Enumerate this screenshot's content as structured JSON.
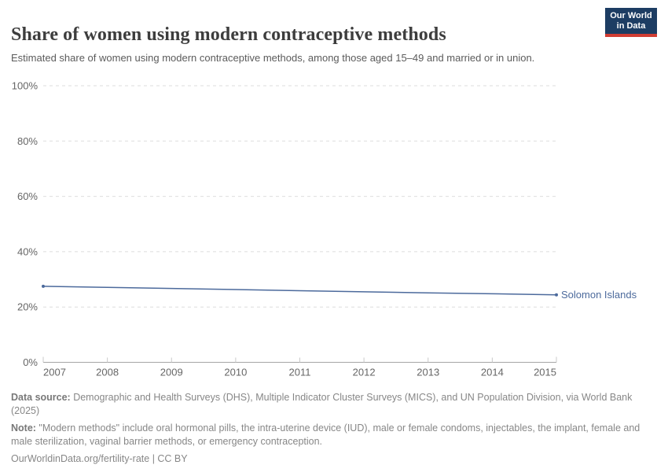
{
  "logo": {
    "line1": "Our World",
    "line2": "in Data"
  },
  "header": {
    "title": "Share of women using modern contraceptive methods",
    "subtitle": "Estimated share of women using modern contraceptive methods, among those aged 15–49 and married or in union."
  },
  "chart_data": {
    "type": "line",
    "title": "Share of women using modern contraceptive methods",
    "x": [
      2007,
      2008,
      2009,
      2010,
      2011,
      2012,
      2013,
      2014,
      2015
    ],
    "series": [
      {
        "name": "Solomon Islands",
        "color": "#4c6a9c",
        "values": [
          27.5,
          27.1,
          26.7,
          26.3,
          25.9,
          25.5,
          25.1,
          24.8,
          24.4
        ]
      }
    ],
    "xlabel": "",
    "ylabel": "",
    "ylim": [
      0,
      100
    ],
    "grid": "horizontal-dashed",
    "legend_position": "end-of-line-label"
  },
  "axes": {
    "y_ticks": [
      {
        "value": 100,
        "label": "100%"
      },
      {
        "value": 80,
        "label": "80%"
      },
      {
        "value": 60,
        "label": "60%"
      },
      {
        "value": 40,
        "label": "40%"
      },
      {
        "value": 20,
        "label": "20%"
      },
      {
        "value": 0,
        "label": "0%"
      }
    ],
    "x_ticks": [
      {
        "value": 2007,
        "label": "2007"
      },
      {
        "value": 2008,
        "label": "2008"
      },
      {
        "value": 2009,
        "label": "2009"
      },
      {
        "value": 2010,
        "label": "2010"
      },
      {
        "value": 2011,
        "label": "2011"
      },
      {
        "value": 2012,
        "label": "2012"
      },
      {
        "value": 2013,
        "label": "2013"
      },
      {
        "value": 2014,
        "label": "2014"
      },
      {
        "value": 2015,
        "label": "2015"
      }
    ]
  },
  "footer": {
    "source_label": "Data source:",
    "source_text": " Demographic and Health Surveys (DHS), Multiple Indicator Cluster Surveys (MICS), and UN Population Division, via World Bank (2025)",
    "note_label": "Note:",
    "note_text": " \"Modern methods\" include oral hormonal pills, the intra-uterine device (IUD), male or female condoms, injectables, the implant, female and male sterilization, vaginal barrier methods, or emergency contraception.",
    "url": "OurWorldinData.org/fertility-rate | CC BY"
  },
  "colors": {
    "accent_navy": "#1d3d63",
    "accent_red": "#d13d33",
    "series_blue": "#4c6a9c",
    "gridline": "#dedede",
    "axis_line": "#a5a5a5",
    "tick": "#c9c9c9",
    "axis_text": "#666666"
  }
}
